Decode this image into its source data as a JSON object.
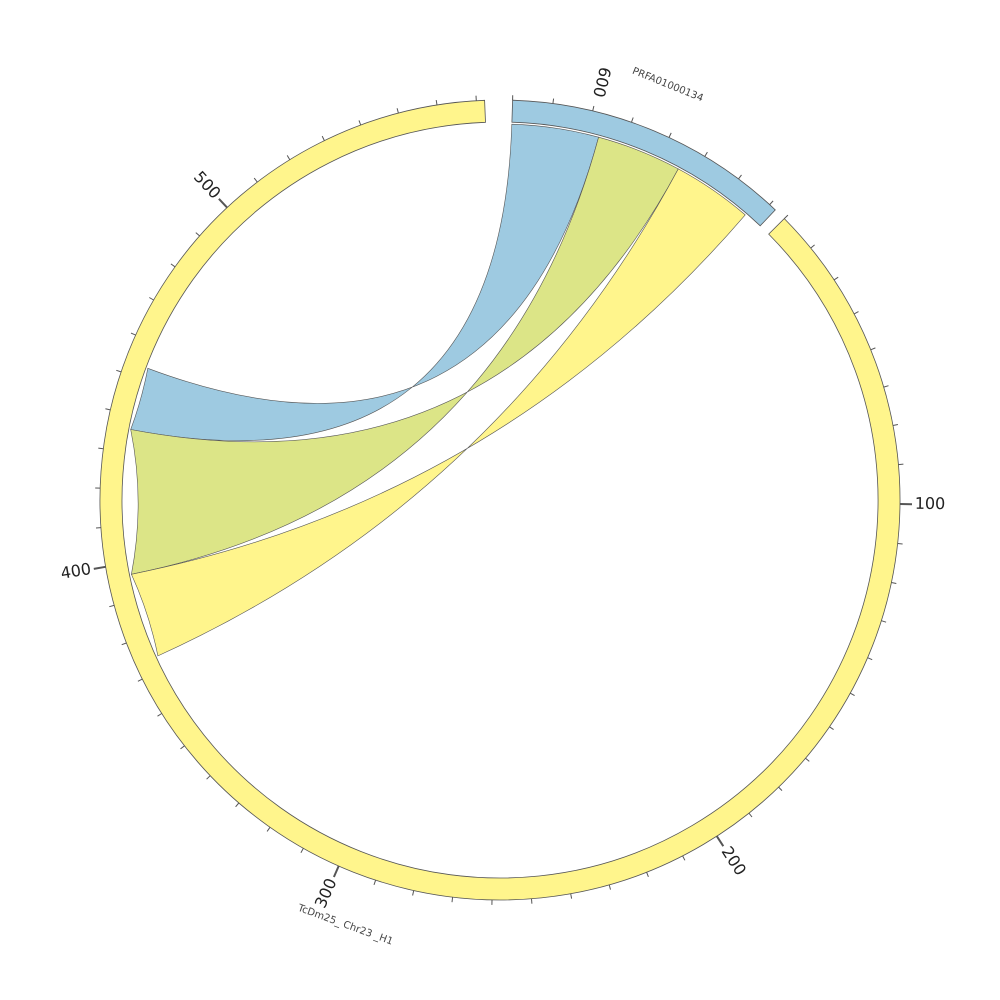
{
  "chromosomes": [
    {
      "id": "PRFA01000134",
      "label": "PRFA01000134",
      "color": "#9ECAE1",
      "major_ticks": []
    },
    {
      "id": "TcDm25_Chr23_H1",
      "label": "TcDm25_ Chr23 _H1",
      "color": "#FFF58C",
      "major_ticks": [
        "100",
        "200",
        "300",
        "400",
        "500",
        "600"
      ]
    }
  ],
  "links": [
    {
      "from": "PRFA01000134",
      "color": "#9ECAE1"
    },
    {
      "from": "PRFA01000134",
      "color": "#DCE587"
    },
    {
      "from": "PRFA01000134",
      "color": "#FFF58C"
    }
  ],
  "colors": {
    "stroke": "#555555",
    "tick": "#555555",
    "background": "#ffffff"
  }
}
